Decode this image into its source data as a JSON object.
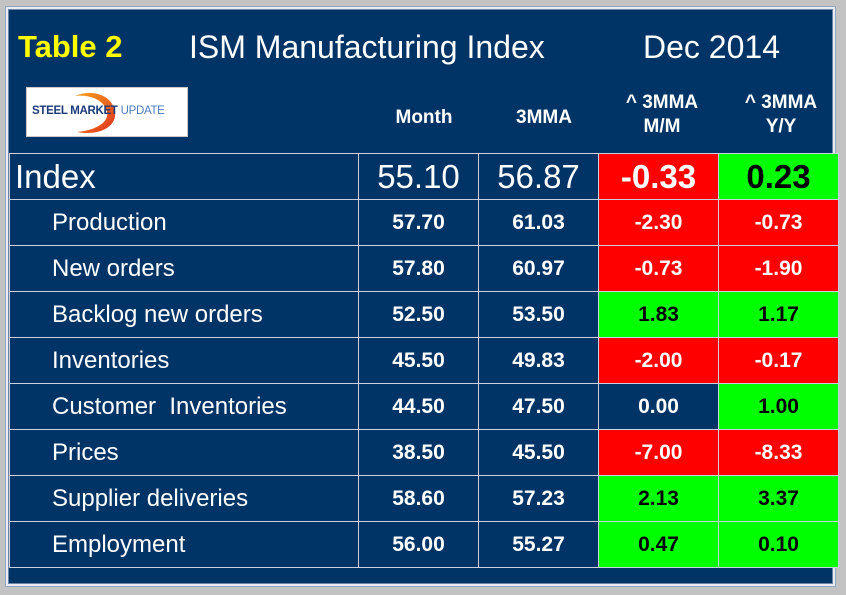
{
  "title": {
    "table_label": "Table 2",
    "main": "ISM Manufacturing Index",
    "period": "Dec 2014"
  },
  "logo": {
    "part1": "STEEL",
    "part2": "MARKET",
    "part3": "UPDATE"
  },
  "headers": {
    "month": "Month",
    "mma": "3MMA",
    "mm_line1": "^ 3MMA",
    "mm_line2": "M/M",
    "yy_line1": "^ 3MMA",
    "yy_line2": "Y/Y"
  },
  "colors": {
    "background": "#003366",
    "negative": "#ff0000",
    "positive": "#00ff00",
    "title_accent": "#ffff00"
  },
  "rows": [
    {
      "label": "Index",
      "month": "55.10",
      "mma": "56.87",
      "mm": "-0.33",
      "yy": "0.23",
      "mm_status": "neg",
      "yy_status": "pos"
    },
    {
      "label": "Production",
      "month": "57.70",
      "mma": "61.03",
      "mm": "-2.30",
      "yy": "-0.73",
      "mm_status": "neg",
      "yy_status": "neg"
    },
    {
      "label": "New orders",
      "month": "57.80",
      "mma": "60.97",
      "mm": "-0.73",
      "yy": "-1.90",
      "mm_status": "neg",
      "yy_status": "neg"
    },
    {
      "label": "Backlog new orders",
      "month": "52.50",
      "mma": "53.50",
      "mm": "1.83",
      "yy": "1.17",
      "mm_status": "pos",
      "yy_status": "pos"
    },
    {
      "label": "Inventories",
      "month": "45.50",
      "mma": "49.83",
      "mm": "-2.00",
      "yy": "-0.17",
      "mm_status": "neg",
      "yy_status": "neg"
    },
    {
      "label": "Customer  Inventories",
      "month": "44.50",
      "mma": "47.50",
      "mm": "0.00",
      "yy": "1.00",
      "mm_status": "neu",
      "yy_status": "pos"
    },
    {
      "label": "Prices",
      "month": "38.50",
      "mma": "45.50",
      "mm": "-7.00",
      "yy": "-8.33",
      "mm_status": "neg",
      "yy_status": "neg"
    },
    {
      "label": "Supplier deliveries",
      "month": "58.60",
      "mma": "57.23",
      "mm": "2.13",
      "yy": "3.37",
      "mm_status": "pos",
      "yy_status": "pos"
    },
    {
      "label": "Employment",
      "month": "56.00",
      "mma": "55.27",
      "mm": "0.47",
      "yy": "0.10",
      "mm_status": "pos",
      "yy_status": "pos"
    }
  ]
}
